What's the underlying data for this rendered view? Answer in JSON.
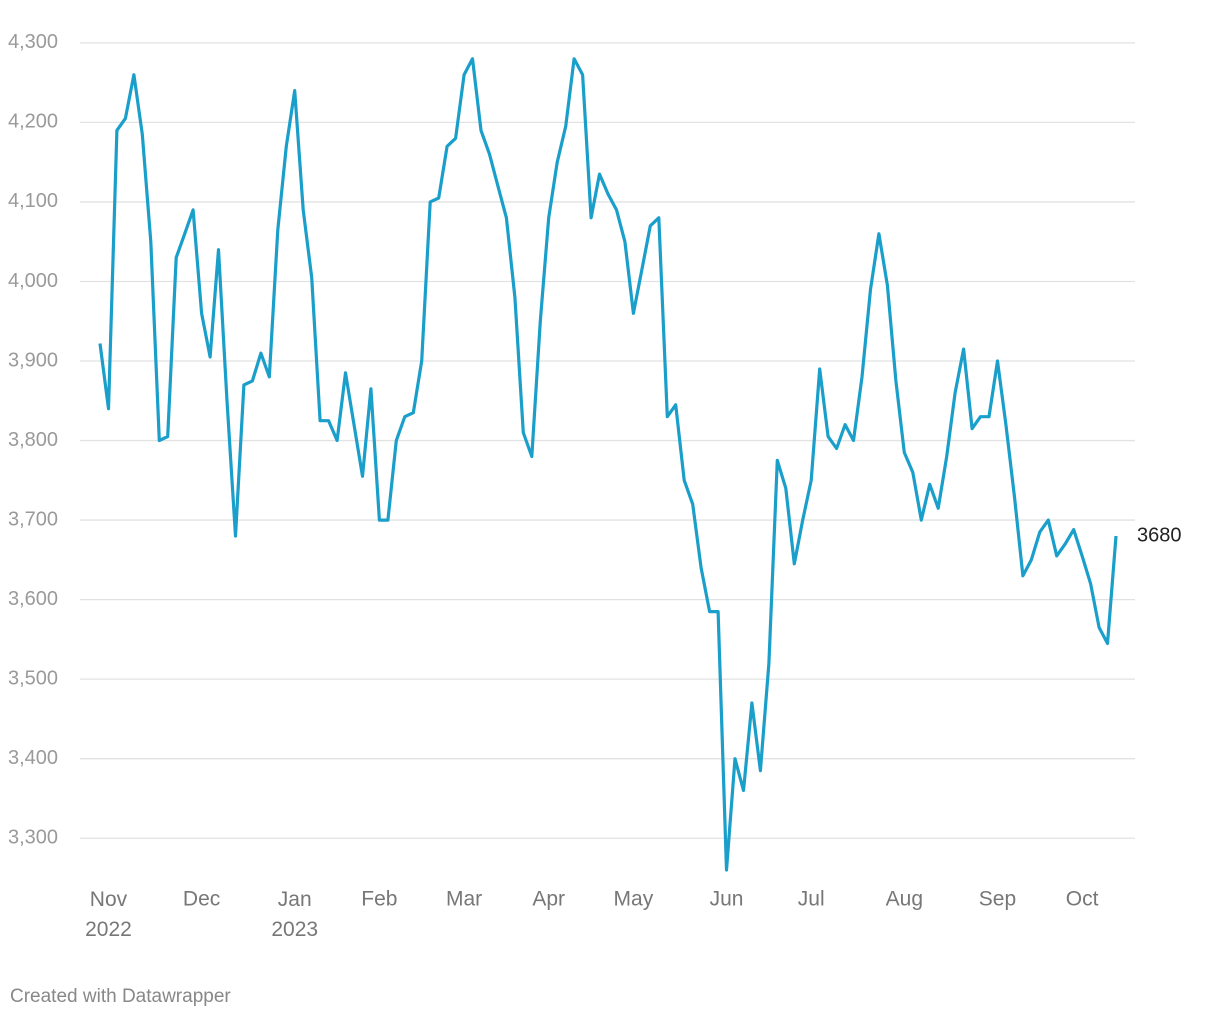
{
  "chart_data": {
    "type": "line",
    "footer": "Created with Datawrapper",
    "color": "#1a9fcb",
    "categories": [
      null,
      "Nov 2022",
      null,
      null,
      null,
      null,
      null,
      null,
      null,
      null,
      null,
      null,
      "Dec",
      null,
      null,
      null,
      null,
      null,
      null,
      null,
      null,
      null,
      null,
      "Jan 2023",
      null,
      null,
      null,
      null,
      null,
      null,
      null,
      null,
      null,
      "Feb",
      null,
      null,
      null,
      null,
      null,
      null,
      null,
      null,
      null,
      "Mar",
      null,
      null,
      null,
      null,
      null,
      null,
      null,
      null,
      null,
      "Apr",
      null,
      null,
      null,
      null,
      null,
      null,
      null,
      null,
      null,
      "May",
      null,
      null,
      null,
      null,
      null,
      null,
      null,
      null,
      null,
      null,
      "Jun",
      null,
      null,
      null,
      null,
      null,
      null,
      null,
      null,
      null,
      "Jul",
      null,
      null,
      null,
      null,
      null,
      null,
      null,
      null,
      null,
      null,
      "Aug",
      null,
      null,
      null,
      null,
      null,
      null,
      null,
      null,
      null,
      null,
      "Sep",
      null,
      null,
      null,
      null,
      null,
      null,
      null,
      null,
      null,
      "Oct",
      null,
      null,
      null,
      null
    ],
    "values": [
      3922,
      3840,
      4190,
      4205,
      4260,
      4185,
      4050,
      3800,
      3805,
      4030,
      4060,
      4090,
      3960,
      3905,
      4040,
      3850,
      3680,
      3870,
      3875,
      3910,
      3880,
      4065,
      4170,
      4240,
      4090,
      4005,
      3825,
      3825,
      3800,
      3885,
      3820,
      3755,
      3865,
      3700,
      3700,
      3800,
      3830,
      3835,
      3900,
      4100,
      4105,
      4170,
      4180,
      4260,
      4280,
      4190,
      4160,
      4120,
      4080,
      3980,
      3810,
      3780,
      3950,
      4080,
      4150,
      4195,
      4280,
      4260,
      4080,
      4135,
      4110,
      4090,
      4050,
      3960,
      4015,
      4070,
      4080,
      3830,
      3845,
      3750,
      3720,
      3640,
      3585,
      3585,
      3260,
      3400,
      3360,
      3470,
      3385,
      3520,
      3775,
      3740,
      3645,
      3700,
      3750,
      3890,
      3805,
      3790,
      3820,
      3800,
      3880,
      3990,
      4060,
      3995,
      3875,
      3785,
      3760,
      3700,
      3745,
      3715,
      3780,
      3860,
      3915,
      3815,
      3830,
      3830,
      3900,
      3820,
      3730,
      3630,
      3650,
      3685,
      3700,
      3655,
      3670,
      3688,
      3655,
      3620,
      3565,
      3545,
      3680
    ],
    "ylim": [
      3250,
      4330
    ],
    "yticks": [
      {
        "value": 3300,
        "label": "3,300"
      },
      {
        "value": 3400,
        "label": "3,400"
      },
      {
        "value": 3500,
        "label": "3,500"
      },
      {
        "value": 3600,
        "label": "3,600"
      },
      {
        "value": 3700,
        "label": "3,700"
      },
      {
        "value": 3800,
        "label": "3,800"
      },
      {
        "value": 3900,
        "label": "3,900"
      },
      {
        "value": 4000,
        "label": "4,000"
      },
      {
        "value": 4100,
        "label": "4,100"
      },
      {
        "value": 4200,
        "label": "4,200"
      },
      {
        "value": 4300,
        "label": "4,300"
      }
    ],
    "grid": true
  }
}
